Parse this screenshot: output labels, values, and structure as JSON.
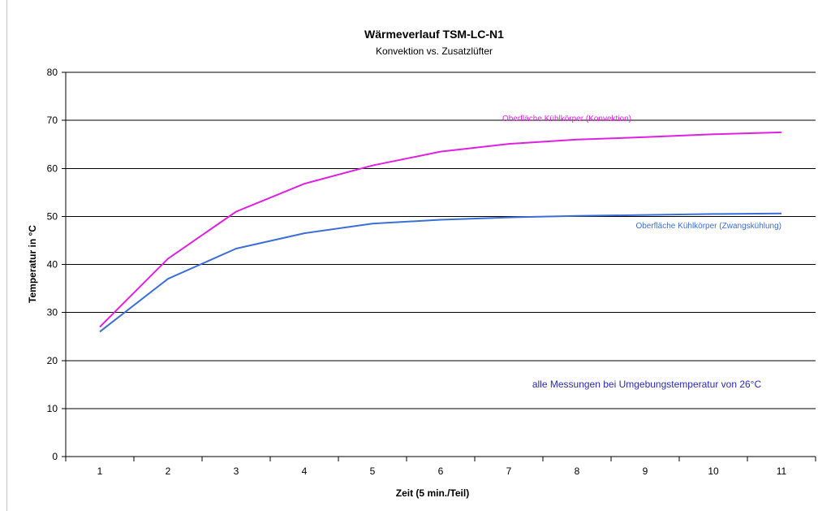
{
  "chart_data": {
    "type": "line",
    "title": "Wärmeverlauf TSM-LC-N1",
    "subtitle": "Konvektion vs. Zusatzlüfter",
    "xlabel": "Zeit (5 min./Teil)",
    "ylabel": "Temperatur in °C",
    "x": [
      1,
      2,
      3,
      4,
      5,
      6,
      7,
      8,
      9,
      10,
      11
    ],
    "ylim": [
      0,
      80
    ],
    "yticks": [
      0,
      10,
      20,
      30,
      40,
      50,
      60,
      70,
      80
    ],
    "grid": true,
    "series": [
      {
        "name": "Oberfläche Kühlkörper (Konvektion)",
        "color": "#e020e0",
        "values": [
          27,
          41.2,
          51,
          56.8,
          60.6,
          63.5,
          65.1,
          66,
          66.5,
          67.1,
          67.5
        ]
      },
      {
        "name": "Oberfläche Kühlkörper (Zwangskühlung)",
        "color": "#3a6fd8",
        "values": [
          26,
          37,
          43.3,
          46.5,
          48.5,
          49.3,
          49.8,
          50.1,
          50.3,
          50.5,
          50.6
        ]
      }
    ],
    "annotation": {
      "text": "alle Messungen bei Umgebungstemperatur von 26°C",
      "color": "#2a2ab8"
    }
  }
}
